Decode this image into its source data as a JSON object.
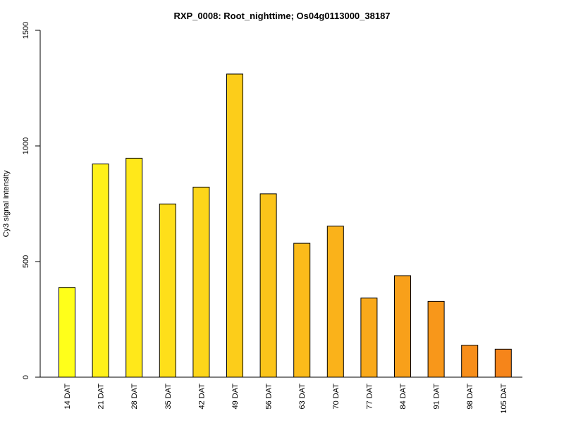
{
  "chart_data": {
    "type": "bar",
    "title": "RXP_0008: Root_nighttime; Os04g0113000_38187",
    "ylabel": "Cy3 signal intensity",
    "xlabel": "",
    "ylim": [
      0,
      1500
    ],
    "yticks": [
      "0",
      "500",
      "1000",
      "1500"
    ],
    "ytick_values": [
      0,
      500,
      1000,
      1500
    ],
    "categories": [
      "14 DAT",
      "21 DAT",
      "28 DAT",
      "35 DAT",
      "42 DAT",
      "49 DAT",
      "56 DAT",
      "63 DAT",
      "70 DAT",
      "77 DAT",
      "84 DAT",
      "91 DAT",
      "98 DAT",
      "105 DAT"
    ],
    "values": [
      388,
      922,
      947,
      749,
      822,
      1311,
      793,
      579,
      653,
      342,
      439,
      328,
      138,
      121
    ],
    "colors": [
      "#ffff1a",
      "#fff119",
      "#ffe81a",
      "#fedf1a",
      "#fdd61a",
      "#fccd1a",
      "#fbc41a",
      "#fbbb1a",
      "#fab21a",
      "#f9a91a",
      "#f8a01a",
      "#f8971a",
      "#f78e1a",
      "#f6851a"
    ],
    "grid": false,
    "legend": "none"
  }
}
